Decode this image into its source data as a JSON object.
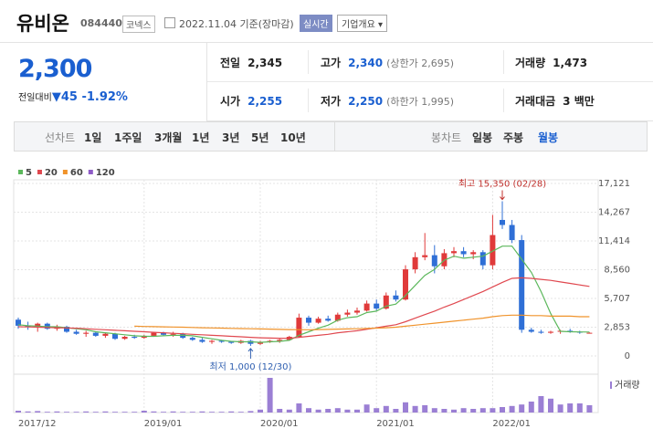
{
  "header": {
    "name": "유비온",
    "code": "084440",
    "market": "코넥스",
    "date": "2022.11.04 기준(장마감)",
    "realtime": "실시간",
    "company_info": "기업개요"
  },
  "quote": {
    "price": "2,300",
    "change_label": "전일대비",
    "change": "45",
    "change_rate": "-1.92%",
    "color": "#1a5fd0",
    "table": [
      [
        {
          "label": "전일",
          "value": "2,345"
        },
        {
          "label": "고가",
          "value": "2,340",
          "note": "(상한가 2,695)",
          "color": "#1a5fd0"
        },
        {
          "label": "거래량",
          "value": "1,473"
        }
      ],
      [
        {
          "label": "시가",
          "value": "2,255",
          "color": "#1a5fd0"
        },
        {
          "label": "저가",
          "value": "2,250",
          "note": "(하한가 1,995)",
          "color": "#1a5fd0"
        },
        {
          "label": "거래대금",
          "value": "3 백만"
        }
      ]
    ]
  },
  "toolbar": {
    "line_label": "선차트",
    "line_periods": [
      "1일",
      "1주일",
      "3개월",
      "1년",
      "3년",
      "5년",
      "10년"
    ],
    "candle_label": "봉차트",
    "candle_periods": [
      "일봉",
      "주봉",
      "월봉"
    ],
    "selected": 2
  },
  "chart_data": {
    "type": "candlestick",
    "x": [
      "2017-12",
      "2018-01",
      "2018-02",
      "2018-03",
      "2018-04",
      "2018-05",
      "2018-06",
      "2018-07",
      "2018-08",
      "2018-09",
      "2018-10",
      "2018-11",
      "2018-12",
      "2019-01",
      "2019-02",
      "2019-03",
      "2019-04",
      "2019-05",
      "2019-06",
      "2019-07",
      "2019-08",
      "2019-09",
      "2019-10",
      "2019-11",
      "2019-12",
      "2020-01",
      "2020-02",
      "2020-03",
      "2020-04",
      "2020-05",
      "2020-06",
      "2020-07",
      "2020-08",
      "2020-09",
      "2020-10",
      "2020-11",
      "2020-12",
      "2021-01",
      "2021-02",
      "2021-03",
      "2021-04",
      "2021-05",
      "2021-06",
      "2021-07",
      "2021-08",
      "2021-09",
      "2021-10",
      "2021-11",
      "2021-12",
      "2022-01",
      "2022-02",
      "2022-03",
      "2022-04",
      "2022-05",
      "2022-06",
      "2022-07",
      "2022-08",
      "2022-09",
      "2022-10",
      "2022-11"
    ],
    "candles": {
      "open": [
        3600,
        3000,
        2900,
        3200,
        2700,
        2900,
        2400,
        2200,
        2300,
        2000,
        2200,
        1700,
        1900,
        1800,
        2000,
        2300,
        2100,
        2200,
        1800,
        1600,
        1400,
        1500,
        1400,
        1300,
        1500,
        1200,
        1400,
        1500,
        1600,
        1900,
        3800,
        3300,
        3700,
        3500,
        4100,
        4300,
        4500,
        5200,
        4700,
        6000,
        5600,
        8600,
        9800,
        10000,
        8900,
        10200,
        10400,
        10100,
        10300,
        9000,
        13500,
        13000,
        11500,
        2600,
        2400,
        2300,
        2400,
        2500,
        2400,
        2255
      ],
      "high": [
        3800,
        3400,
        3300,
        3300,
        3100,
        3000,
        2600,
        2500,
        2400,
        2300,
        2300,
        2000,
        2100,
        2100,
        2400,
        2400,
        2400,
        2300,
        1900,
        1800,
        1600,
        1600,
        1500,
        1600,
        1600,
        1500,
        1600,
        1700,
        2000,
        4200,
        4000,
        3900,
        4000,
        4300,
        4600,
        4800,
        5500,
        5600,
        6300,
        6500,
        9000,
        10300,
        12200,
        11000,
        10600,
        10800,
        10800,
        10500,
        10500,
        14000,
        15350,
        13500,
        12000,
        2800,
        2600,
        2500,
        2600,
        2700,
        2500,
        2340
      ],
      "low": [
        2700,
        2600,
        2400,
        2600,
        2500,
        2300,
        2100,
        1900,
        1900,
        1800,
        1600,
        1600,
        1700,
        1700,
        1900,
        2000,
        1900,
        1700,
        1500,
        1300,
        1200,
        1300,
        1200,
        1200,
        1000,
        1100,
        1300,
        1300,
        1500,
        1800,
        3000,
        3200,
        3400,
        3400,
        3900,
        4100,
        4400,
        4500,
        4600,
        5400,
        5500,
        8200,
        9500,
        8200,
        8600,
        9800,
        9800,
        9600,
        8600,
        8600,
        12600,
        11200,
        2300,
        2300,
        2200,
        2200,
        2200,
        2300,
        2200,
        2250
      ],
      "close": [
        3000,
        2900,
        3200,
        2700,
        2900,
        2400,
        2200,
        2300,
        2000,
        2200,
        1700,
        1900,
        1800,
        2000,
        2300,
        2100,
        2200,
        1800,
        1600,
        1400,
        1500,
        1400,
        1300,
        1500,
        1200,
        1400,
        1500,
        1600,
        1900,
        3800,
        3300,
        3700,
        3500,
        4100,
        4300,
        4500,
        5200,
        4700,
        6000,
        5600,
        8600,
        9800,
        10000,
        8900,
        10200,
        10400,
        10100,
        10300,
        9000,
        12000,
        13000,
        11500,
        2600,
        2400,
        2300,
        2400,
        2500,
        2400,
        2345,
        2300
      ]
    },
    "up_color": "#e03a3a",
    "down_color": "#2f6fd6",
    "moving_averages": [
      {
        "name": "5",
        "color": "#5cb85c",
        "values": [
          3100,
          3000,
          2950,
          2900,
          2900,
          2800,
          2700,
          2600,
          2400,
          2300,
          2200,
          2100,
          2000,
          1950,
          1950,
          2000,
          2050,
          2050,
          2000,
          1850,
          1700,
          1550,
          1450,
          1400,
          1400,
          1350,
          1400,
          1450,
          1550,
          2050,
          2400,
          2750,
          3050,
          3550,
          3800,
          3900,
          4300,
          4450,
          4950,
          5150,
          6000,
          7000,
          8000,
          8600,
          9500,
          9900,
          9700,
          9800,
          9900,
          10400,
          10900,
          10900,
          9600,
          8300,
          6400,
          4200,
          2450,
          2400,
          2380,
          2370
        ]
      },
      {
        "name": "20",
        "color": "#e0484f",
        "values": [
          2900,
          2880,
          2850,
          2830,
          2800,
          2780,
          2750,
          2700,
          2650,
          2600,
          2550,
          2500,
          2450,
          2400,
          2350,
          2300,
          2250,
          2200,
          2150,
          2100,
          2050,
          2000,
          1950,
          1900,
          1850,
          1800,
          1780,
          1760,
          1750,
          1850,
          1950,
          2050,
          2150,
          2300,
          2400,
          2500,
          2650,
          2800,
          2950,
          3100,
          3400,
          3750,
          4100,
          4450,
          4850,
          5200,
          5600,
          6000,
          6400,
          6850,
          7300,
          7700,
          7750,
          7700,
          7600,
          7500,
          7350,
          7200,
          7050,
          6900
        ]
      },
      {
        "name": "60",
        "color": "#f0932b",
        "values": [
          null,
          null,
          null,
          null,
          null,
          null,
          null,
          null,
          null,
          null,
          null,
          null,
          2950,
          2930,
          2910,
          2890,
          2870,
          2850,
          2830,
          2800,
          2780,
          2760,
          2740,
          2720,
          2700,
          2680,
          2660,
          2640,
          2620,
          2610,
          2600,
          2620,
          2640,
          2660,
          2680,
          2700,
          2730,
          2760,
          2800,
          2850,
          2950,
          3050,
          3150,
          3250,
          3350,
          3450,
          3550,
          3650,
          3750,
          3900,
          4000,
          4050,
          4050,
          4000,
          4000,
          3950,
          3950,
          3950,
          3900,
          3900
        ]
      },
      {
        "name": "120",
        "color": "#8e5cc7"
      }
    ],
    "volume": {
      "name": "거래량",
      "color": "#9b7fd4",
      "ylim": [
        0,
        100
      ],
      "values": [
        5,
        3,
        4,
        2,
        3,
        2,
        2,
        3,
        2,
        3,
        2,
        2,
        2,
        5,
        3,
        2,
        3,
        2,
        2,
        3,
        2,
        2,
        3,
        2,
        4,
        8,
        95,
        10,
        8,
        25,
        12,
        8,
        10,
        12,
        8,
        8,
        22,
        12,
        18,
        10,
        28,
        18,
        20,
        12,
        10,
        8,
        12,
        10,
        12,
        12,
        15,
        18,
        22,
        30,
        45,
        38,
        22,
        25,
        25,
        20
      ]
    },
    "annotations": {
      "high": "최고 15,350 (02/28)",
      "low": "최저 1,000 (12/30)"
    },
    "ylim": [
      -1630,
      17483
    ],
    "yticks": [
      0,
      {
        "value": 2853,
        "label": "2,853"
      },
      {
        "value": 5707,
        "label": "5,707"
      },
      {
        "value": 8560,
        "label": "8,560"
      },
      {
        "value": 11414,
        "label": "11,414"
      },
      {
        "value": 14267,
        "label": "14,267"
      },
      {
        "value": 17121,
        "label": "17,121"
      }
    ],
    "xticks": [
      {
        "value": "2017-12",
        "label": "2017/12"
      },
      {
        "value": "2019-01",
        "label": "2019/01"
      },
      {
        "value": "2020-01",
        "label": "2020/01"
      },
      {
        "value": "2021-01",
        "label": "2021/01"
      },
      {
        "value": "2022-01",
        "label": "2022/01"
      }
    ],
    "grid": true
  }
}
